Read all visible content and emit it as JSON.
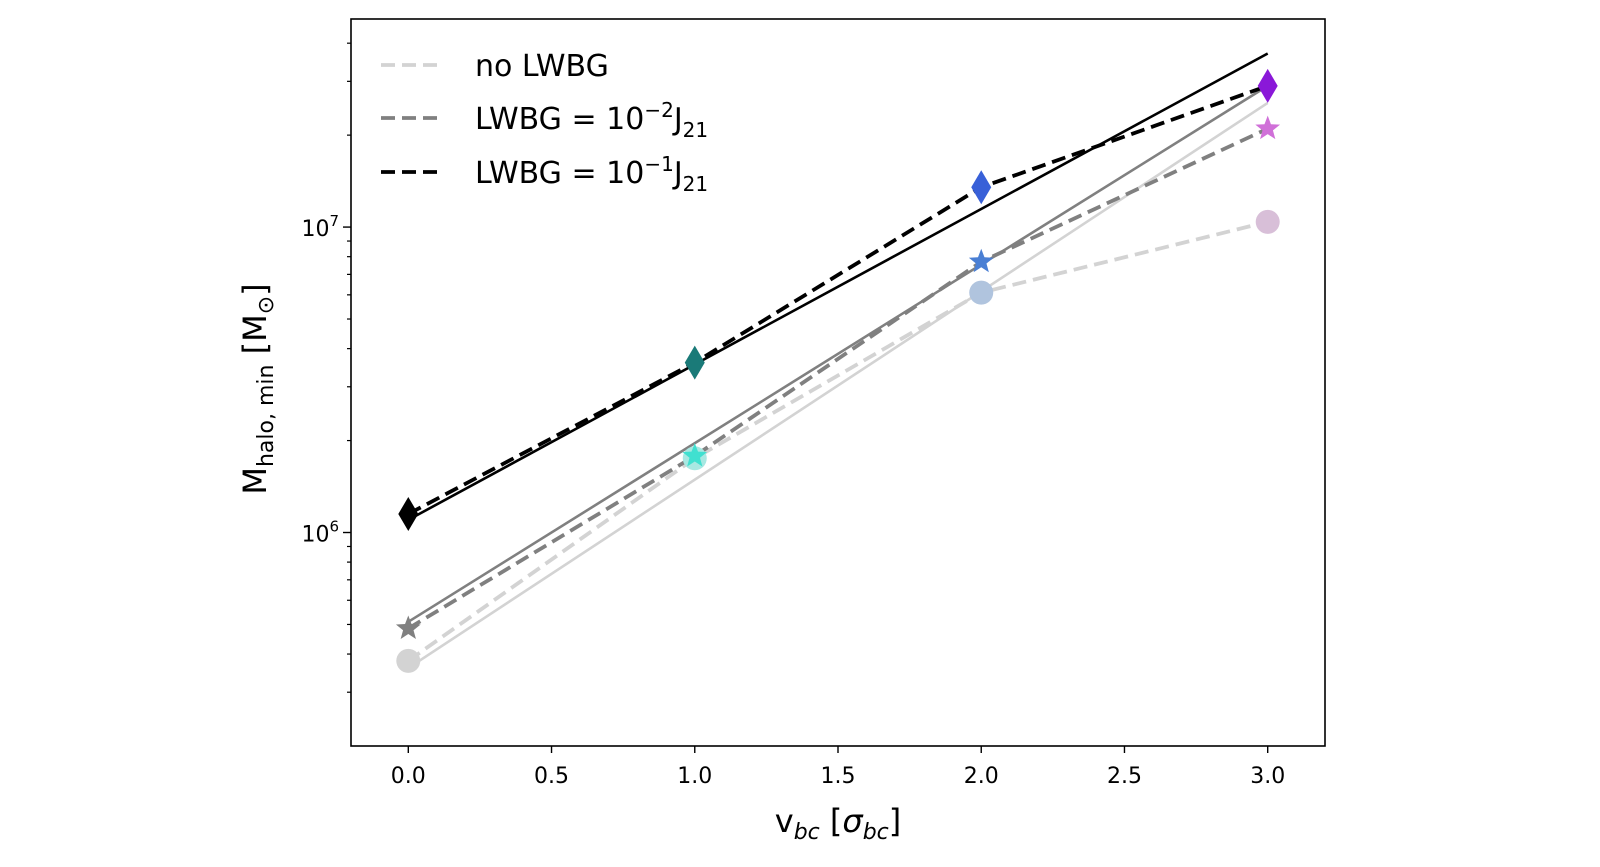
{
  "chart_data": {
    "type": "line",
    "x_axis": {
      "label_main": "v",
      "label_sub": "bc",
      "label_open": " [",
      "label_sigma": "σ",
      "label_sigma_sub": "bc",
      "label_close": "]",
      "range": [
        -0.2,
        3.2
      ],
      "ticks": [
        0.0,
        0.5,
        1.0,
        1.5,
        2.0,
        2.5,
        3.0
      ],
      "tick_labels": [
        "0.0",
        "0.5",
        "1.0",
        "1.5",
        "2.0",
        "2.5",
        "3.0"
      ]
    },
    "y_axis": {
      "label_main": "M",
      "label_sub": "halo, min",
      "label_unit_open": " [M",
      "label_unit_sub": "⊙",
      "label_unit_close": "]",
      "scale": "log",
      "range": [
        200000,
        48000000
      ],
      "major_ticks": [
        {
          "value": 1000000,
          "base": "10",
          "exp": "6"
        },
        {
          "value": 10000000,
          "base": "10",
          "exp": "7"
        }
      ],
      "minor_ticks": [
        300000,
        400000,
        500000,
        600000,
        700000,
        800000,
        900000,
        2000000,
        3000000,
        4000000,
        5000000,
        6000000,
        7000000,
        8000000,
        9000000,
        20000000,
        30000000,
        40000000
      ]
    },
    "legend": {
      "position": "upper-left",
      "entries": [
        {
          "series": "no LWBG",
          "prefix": "no LWBG",
          "base": "",
          "exp": "",
          "suffix": "",
          "suffix_sub": ""
        },
        {
          "series": "LWBG = 10^-2 J21",
          "prefix": "LWBG = ",
          "base": "10",
          "exp": "−2",
          "suffix": "J",
          "suffix_sub": "21"
        },
        {
          "series": "LWBG = 10^-1 J21",
          "prefix": "LWBG = ",
          "base": "10",
          "exp": "−1",
          "suffix": "J",
          "suffix_sub": "21"
        }
      ]
    },
    "series": [
      {
        "name": "no LWBG",
        "color": "#d3d3d3",
        "dashed_x": [
          0,
          1,
          2,
          3
        ],
        "dashed_y": [
          380000,
          1750000,
          6100000,
          10400000
        ],
        "fit_x": [
          0,
          3
        ],
        "fit_y": [
          360000,
          25500000
        ],
        "marker": "circle",
        "marker_colors": [
          "#d3d3d3",
          "#a8e8e2",
          "#b0c4de",
          "#d8bfd8"
        ]
      },
      {
        "name": "LWBG = 10^-2 J21",
        "color": "#808080",
        "dashed_x": [
          0,
          1,
          2,
          3
        ],
        "dashed_y": [
          485000,
          1780000,
          7700000,
          21000000
        ],
        "fit_x": [
          0,
          3
        ],
        "fit_y": [
          510000,
          29000000
        ],
        "marker": "star",
        "marker_colors": [
          "#808080",
          "#40e0d0",
          "#4a7fd4",
          "#d070d8"
        ]
      },
      {
        "name": "LWBG = 10^-1 J21",
        "color": "#000000",
        "dashed_x": [
          0,
          1,
          2,
          3
        ],
        "dashed_y": [
          1150000,
          3600000,
          13500000,
          29000000
        ],
        "fit_x": [
          0,
          3
        ],
        "fit_y": [
          1100000,
          37000000
        ],
        "marker": "diamond",
        "marker_colors": [
          "#000000",
          "#1a7a78",
          "#3860d8",
          "#8a18d8"
        ]
      }
    ]
  }
}
